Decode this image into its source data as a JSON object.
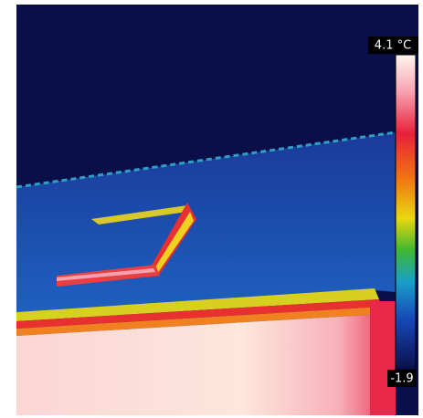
{
  "scale": {
    "max_label": "4.1 °C",
    "min_label": "-1.9"
  }
}
